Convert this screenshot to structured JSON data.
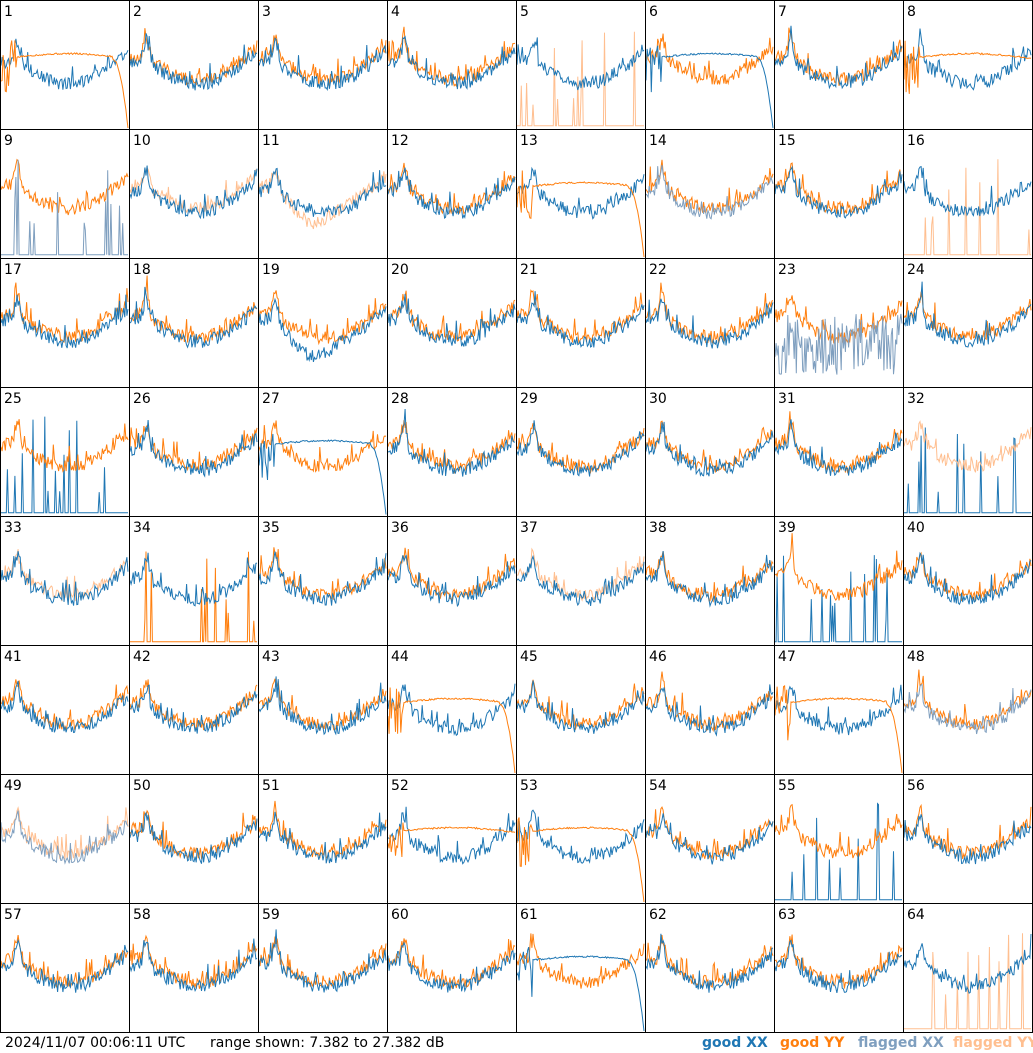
{
  "footer": {
    "timestamp": "2024/11/07 00:06:11 UTC",
    "range": "range shown: 7.382 to 27.382 dB",
    "legend": [
      "good XX",
      "good YY",
      "flagged XX",
      "flagged YY"
    ]
  },
  "colors": {
    "good_xx": "#1f77b4",
    "good_yy": "#ff7f0e",
    "flagged_xx": "#7f9fbf",
    "flagged_yy": "#ffbf90"
  },
  "chart_data": {
    "type": "line",
    "title": "",
    "ylim": [
      7.382,
      27.382
    ],
    "grid_rows": 8,
    "grid_cols": 8,
    "series_names": [
      "good XX",
      "good YY",
      "flagged XX",
      "flagged YY"
    ],
    "panels": [
      {
        "label": "1",
        "xx": "good",
        "yy": "good",
        "yy_mode": "smooth_droop",
        "yy_on_top": true
      },
      {
        "label": "2",
        "xx": "good",
        "yy": "good"
      },
      {
        "label": "3",
        "xx": "good",
        "yy": "good"
      },
      {
        "label": "4",
        "xx": "good",
        "yy": "good"
      },
      {
        "label": "5",
        "xx": "good",
        "yy": "flagged",
        "yy_mode": "spikes"
      },
      {
        "label": "6",
        "xx": "good",
        "yy": "good",
        "xx_mode": "smooth_droop"
      },
      {
        "label": "7",
        "xx": "good",
        "yy": "good"
      },
      {
        "label": "8",
        "xx": "good",
        "yy": "good",
        "yy_mode": "smooth",
        "yy_on_top": true
      },
      {
        "label": "9",
        "xx": "flagged",
        "yy": "good",
        "xx_mode": "spikes"
      },
      {
        "label": "10",
        "xx": "good",
        "yy": "flagged"
      },
      {
        "label": "11",
        "xx": "good",
        "yy": "flagged",
        "yy_mode": "dip"
      },
      {
        "label": "12",
        "xx": "good",
        "yy": "good"
      },
      {
        "label": "13",
        "xx": "good",
        "yy": "good",
        "yy_mode": "smooth_droop",
        "yy_on_top": true
      },
      {
        "label": "14",
        "xx": "flagged",
        "yy": "good"
      },
      {
        "label": "15",
        "xx": "good",
        "yy": "good"
      },
      {
        "label": "16",
        "xx": "good",
        "yy": "flagged",
        "yy_mode": "spikes"
      },
      {
        "label": "17",
        "xx": "good",
        "yy": "good"
      },
      {
        "label": "18",
        "xx": "good",
        "yy": "good"
      },
      {
        "label": "19",
        "xx": "good",
        "yy": "good",
        "xx_mode": "dip"
      },
      {
        "label": "20",
        "xx": "good",
        "yy": "good"
      },
      {
        "label": "21",
        "xx": "good",
        "yy": "good"
      },
      {
        "label": "22",
        "xx": "good",
        "yy": "good"
      },
      {
        "label": "23",
        "xx": "flagged",
        "yy": "good",
        "xx_mode": "noise"
      },
      {
        "label": "24",
        "xx": "good",
        "yy": "good"
      },
      {
        "label": "25",
        "xx": "good",
        "yy": "good",
        "xx_mode": "spikes",
        "yy_on_top": true
      },
      {
        "label": "26",
        "xx": "good",
        "yy": "good"
      },
      {
        "label": "27",
        "xx": "good",
        "yy": "good",
        "xx_mode": "smooth_droop"
      },
      {
        "label": "28",
        "xx": "good",
        "yy": "good"
      },
      {
        "label": "29",
        "xx": "good",
        "yy": "good"
      },
      {
        "label": "30",
        "xx": "good",
        "yy": "good"
      },
      {
        "label": "31",
        "xx": "good",
        "yy": "good"
      },
      {
        "label": "32",
        "xx": "good",
        "yy": "flagged",
        "xx_mode": "spikes",
        "yy_on_top": true
      },
      {
        "label": "33",
        "xx": "good",
        "yy": "flagged"
      },
      {
        "label": "34",
        "xx": "good",
        "yy": "good",
        "yy_mode": "spikes"
      },
      {
        "label": "35",
        "xx": "good",
        "yy": "good"
      },
      {
        "label": "36",
        "xx": "good",
        "yy": "good"
      },
      {
        "label": "37",
        "xx": "good",
        "yy": "flagged"
      },
      {
        "label": "38",
        "xx": "good",
        "yy": "good"
      },
      {
        "label": "39",
        "xx": "good",
        "yy": "good",
        "xx_mode": "spikes",
        "yy_on_top": true
      },
      {
        "label": "40",
        "xx": "good",
        "yy": "good"
      },
      {
        "label": "41",
        "xx": "good",
        "yy": "good"
      },
      {
        "label": "42",
        "xx": "good",
        "yy": "good"
      },
      {
        "label": "43",
        "xx": "good",
        "yy": "good"
      },
      {
        "label": "44",
        "xx": "good",
        "yy": "good",
        "yy_mode": "smooth_droop",
        "yy_on_top": true
      },
      {
        "label": "45",
        "xx": "good",
        "yy": "good"
      },
      {
        "label": "46",
        "xx": "good",
        "yy": "good"
      },
      {
        "label": "47",
        "xx": "good",
        "yy": "good",
        "yy_mode": "smooth_droop",
        "yy_on_top": true
      },
      {
        "label": "48",
        "xx": "flagged",
        "yy": "good"
      },
      {
        "label": "49",
        "xx": "flagged",
        "yy": "flagged"
      },
      {
        "label": "50",
        "xx": "good",
        "yy": "good"
      },
      {
        "label": "51",
        "xx": "good",
        "yy": "good"
      },
      {
        "label": "52",
        "xx": "good",
        "yy": "good",
        "yy_mode": "smooth",
        "yy_on_top": true
      },
      {
        "label": "53",
        "xx": "good",
        "yy": "good",
        "yy_mode": "smooth_droop",
        "yy_on_top": true
      },
      {
        "label": "54",
        "xx": "good",
        "yy": "good"
      },
      {
        "label": "55",
        "xx": "good",
        "yy": "good",
        "xx_mode": "spikes",
        "yy_on_top": true
      },
      {
        "label": "56",
        "xx": "good",
        "yy": "good"
      },
      {
        "label": "57",
        "xx": "good",
        "yy": "good"
      },
      {
        "label": "58",
        "xx": "good",
        "yy": "good"
      },
      {
        "label": "59",
        "xx": "good",
        "yy": "good"
      },
      {
        "label": "60",
        "xx": "good",
        "yy": "good"
      },
      {
        "label": "61",
        "xx": "good",
        "yy": "good",
        "xx_mode": "smooth_droop"
      },
      {
        "label": "62",
        "xx": "good",
        "yy": "good"
      },
      {
        "label": "63",
        "xx": "good",
        "yy": "good"
      },
      {
        "label": "64",
        "xx": "good",
        "yy": "flagged",
        "yy_mode": "spikes"
      }
    ]
  }
}
